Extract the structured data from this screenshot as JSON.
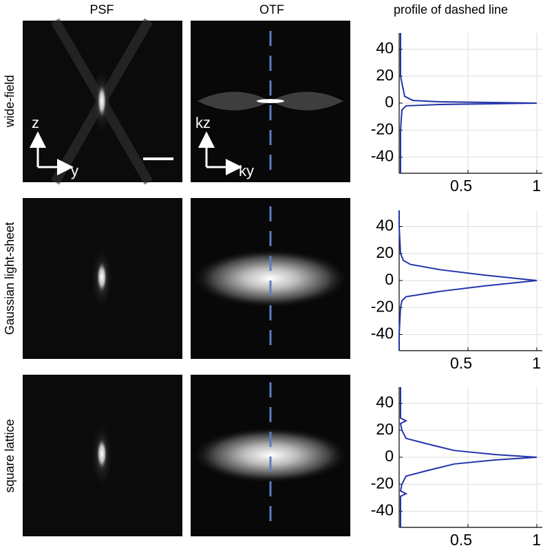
{
  "columns": [
    "PSF",
    "OTF",
    "profile of dashed line"
  ],
  "rows": [
    "wide-field",
    "Gaussian light-sheet",
    "square lattice"
  ],
  "psf_axes": [
    "z",
    "y"
  ],
  "otf_axes": [
    "kz",
    "ky"
  ],
  "chart_data": [
    {
      "type": "line",
      "color": "#2233aa",
      "grid": true,
      "orientation": "vertical",
      "xlim": [
        0,
        1.04
      ],
      "xticks": [
        0.5,
        1
      ],
      "ylim": [
        -52,
        52
      ],
      "yticks": [
        -40,
        -20,
        0,
        20,
        40
      ],
      "y": [
        -52,
        -40,
        -20,
        -5,
        -2,
        -1,
        0,
        1,
        2,
        5,
        20,
        40,
        52
      ],
      "values": [
        0.01,
        0.01,
        0.01,
        0.02,
        0.05,
        0.3,
        1,
        0.3,
        0.1,
        0.04,
        0.01,
        0.01,
        0.01
      ]
    },
    {
      "type": "line",
      "color": "#2233aa",
      "grid": true,
      "orientation": "vertical",
      "xlim": [
        0,
        1.04
      ],
      "xticks": [
        0.5,
        1
      ],
      "ylim": [
        -52,
        52
      ],
      "yticks": [
        -40,
        -20,
        0,
        20,
        40
      ],
      "y": [
        -52,
        -40,
        -20,
        -15,
        -12,
        -8,
        -4,
        0,
        4,
        8,
        12,
        15,
        20,
        40,
        52
      ],
      "values": [
        0,
        0,
        0.01,
        0.02,
        0.05,
        0.3,
        0.62,
        1,
        0.62,
        0.3,
        0.08,
        0.03,
        0.01,
        0,
        0
      ]
    },
    {
      "type": "line",
      "color": "#2233aa",
      "grid": true,
      "orientation": "vertical",
      "xlim": [
        0,
        1.04
      ],
      "xticks": [
        0.5,
        1
      ],
      "ylim": [
        -52,
        52
      ],
      "yticks": [
        -40,
        -20,
        0,
        20,
        40
      ],
      "y": [
        -52,
        -40,
        -29,
        -27,
        -25,
        -20,
        -14,
        -10,
        -5,
        -2,
        0,
        2,
        5,
        10,
        14,
        20,
        25,
        27,
        29,
        40,
        52
      ],
      "values": [
        0.01,
        0.01,
        0.01,
        0.05,
        0.01,
        0.02,
        0.05,
        0.2,
        0.4,
        0.7,
        1,
        0.7,
        0.4,
        0.2,
        0.05,
        0.02,
        0.01,
        0.05,
        0.01,
        0.01,
        0.01
      ]
    }
  ]
}
